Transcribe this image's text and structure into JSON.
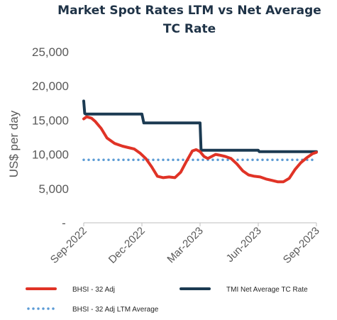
{
  "chart_data": {
    "type": "line",
    "title_lines": [
      "Market Spot Rates LTM vs Net Average",
      "TC Rate"
    ],
    "ylabel": "US$ per day",
    "xlabel": "",
    "ylim": [
      0,
      25000
    ],
    "yticks": [
      0,
      5000,
      10000,
      15000,
      20000,
      25000
    ],
    "ytick_labels": [
      "-",
      "5,000",
      "10,000",
      "15,000",
      "20,000",
      "25,000"
    ],
    "xlim": [
      0,
      12
    ],
    "xticks": [
      0,
      3,
      6,
      9,
      12
    ],
    "xtick_labels": [
      "Sep-2022",
      "Dec-2022",
      "Mar-2023",
      "Jun-2023",
      "Sep-2023"
    ],
    "grid": false,
    "legend_position": "bottom",
    "series": [
      {
        "name": "BHSI - 32 Adj",
        "color": "#e03326",
        "style": "solid",
        "x": [
          0,
          0.15,
          0.4,
          0.6,
          0.9,
          1.2,
          1.6,
          2.0,
          2.3,
          2.6,
          2.9,
          3.2,
          3.5,
          3.8,
          4.1,
          4.4,
          4.7,
          5.0,
          5.3,
          5.6,
          5.8,
          6.0,
          6.2,
          6.4,
          6.6,
          6.8,
          7.0,
          7.3,
          7.6,
          7.9,
          8.2,
          8.5,
          8.8,
          9.1,
          9.4,
          9.7,
          10.0,
          10.3,
          10.6,
          10.9,
          11.2,
          11.5,
          11.8,
          12.0
        ],
        "values": [
          15200,
          15500,
          15300,
          14800,
          13800,
          12400,
          11600,
          11200,
          11000,
          10800,
          10200,
          9400,
          8200,
          6800,
          6600,
          6700,
          6600,
          7400,
          9000,
          10500,
          10700,
          10400,
          9700,
          9400,
          9700,
          10000,
          9900,
          9700,
          9400,
          8600,
          7600,
          7000,
          6800,
          6700,
          6400,
          6200,
          6000,
          6000,
          6500,
          7800,
          8800,
          9500,
          10100,
          10300
        ]
      },
      {
        "name": "TMI Net Average TC Rate",
        "color": "#1b3a52",
        "style": "solid",
        "x": [
          0,
          0.05,
          0.1,
          3.0,
          3.1,
          6.0,
          6.05,
          9.0,
          9.05,
          12.0
        ],
        "values": [
          17800,
          16000,
          15900,
          15900,
          14600,
          14600,
          10600,
          10600,
          10400,
          10400
        ]
      },
      {
        "name": "BHSI - 32 Adj LTM Average",
        "color": "#5b9bd5",
        "style": "dotted",
        "x": [
          0,
          12
        ],
        "values": [
          9200,
          9200
        ]
      }
    ]
  }
}
